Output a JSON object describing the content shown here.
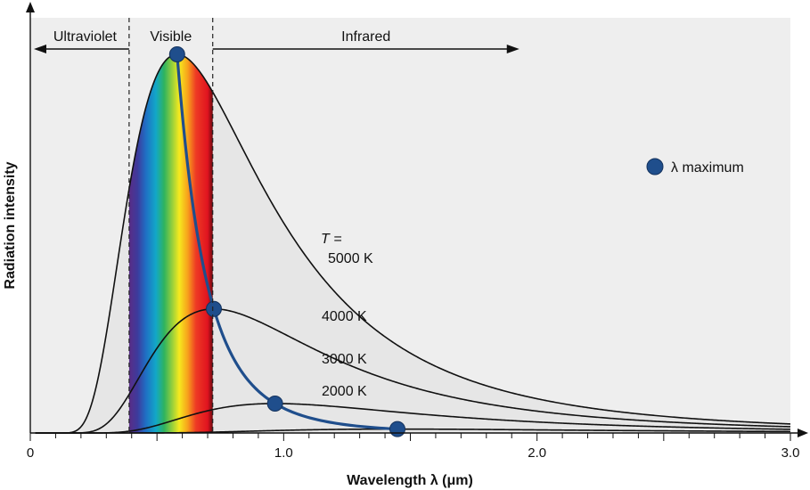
{
  "chart_data": {
    "type": "line",
    "xlabel": "Wavelength λ (μm)",
    "ylabel": "Radiation intensity",
    "xlim": [
      0,
      3.0
    ],
    "x_ticks": [
      {
        "value": 0,
        "label": "0"
      },
      {
        "value": 1.0,
        "label": "1.0"
      },
      {
        "value": 2.0,
        "label": "2.0"
      },
      {
        "value": 3.0,
        "label": "3.0"
      }
    ],
    "ylim": [
      0,
      1.0
    ],
    "y_ticks_shown": false,
    "regions": [
      {
        "name": "Ultraviolet",
        "x_range": [
          0,
          0.39
        ]
      },
      {
        "name": "Visible",
        "x_range": [
          0.39,
          0.72
        ]
      },
      {
        "name": "Infrared",
        "x_range": [
          0.72,
          1.93
        ]
      }
    ],
    "boundaries": [
      0.39,
      0.72
    ],
    "series": [
      {
        "name": "5000 K",
        "temperature_K": 5000,
        "peak": {
          "x": 0.58,
          "y": 1.0
        }
      },
      {
        "name": "4000 K",
        "temperature_K": 4000,
        "peak": {
          "x": 0.72,
          "y": 0.46
        }
      },
      {
        "name": "3000 K",
        "temperature_K": 3000,
        "peak": {
          "x": 0.88,
          "y": 0.21
        }
      },
      {
        "name": "2000 K",
        "temperature_K": 2000,
        "peak": {
          "x": 1.22,
          "y": 0.065
        }
      }
    ],
    "peak_curve_name": "λ maximum",
    "legend": {
      "label": "λ maximum",
      "position": "right"
    },
    "annotations": {
      "t_prefix": "T =",
      "curve_labels": [
        "5000 K",
        "4000 K",
        "3000 K",
        "2000 K"
      ]
    },
    "grid": false,
    "colors": {
      "peak_curve": "#1f4e8c",
      "curves": "#111111",
      "fill": "#e6e6e6"
    }
  }
}
